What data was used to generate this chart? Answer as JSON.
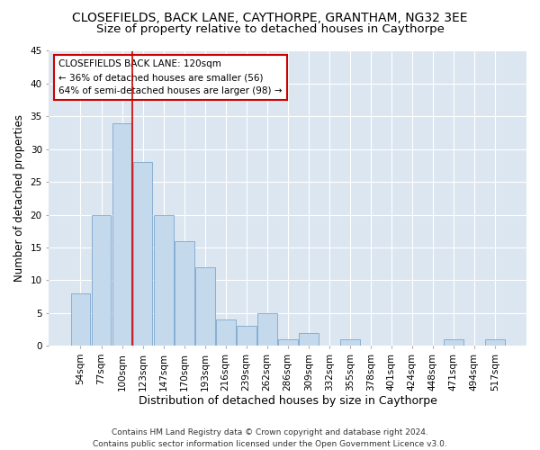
{
  "title": "CLOSEFIELDS, BACK LANE, CAYTHORPE, GRANTHAM, NG32 3EE",
  "subtitle": "Size of property relative to detached houses in Caythorpe",
  "xlabel": "Distribution of detached houses by size in Caythorpe",
  "ylabel": "Number of detached properties",
  "bar_color": "#c5d9ed",
  "bar_edge_color": "#6a9cc9",
  "background_color": "#dce6f1",
  "grid_color": "#ffffff",
  "categories": [
    "54sqm",
    "77sqm",
    "100sqm",
    "123sqm",
    "147sqm",
    "170sqm",
    "193sqm",
    "216sqm",
    "239sqm",
    "262sqm",
    "286sqm",
    "309sqm",
    "332sqm",
    "355sqm",
    "378sqm",
    "401sqm",
    "424sqm",
    "448sqm",
    "471sqm",
    "494sqm",
    "517sqm"
  ],
  "values": [
    8,
    20,
    34,
    28,
    20,
    16,
    12,
    4,
    3,
    5,
    1,
    2,
    0,
    1,
    0,
    0,
    0,
    0,
    1,
    0,
    1
  ],
  "ylim": [
    0,
    45
  ],
  "yticks": [
    0,
    5,
    10,
    15,
    20,
    25,
    30,
    35,
    40,
    45
  ],
  "property_line_x": 2.5,
  "annotation_line1": "CLOSEFIELDS BACK LANE: 120sqm",
  "annotation_line2": "← 36% of detached houses are smaller (56)",
  "annotation_line3": "64% of semi-detached houses are larger (98) →",
  "annotation_box_color": "#ffffff",
  "annotation_box_edge": "#cc0000",
  "property_line_color": "#cc0000",
  "footer_line1": "Contains HM Land Registry data © Crown copyright and database right 2024.",
  "footer_line2": "Contains public sector information licensed under the Open Government Licence v3.0.",
  "title_fontsize": 10,
  "subtitle_fontsize": 9.5,
  "xlabel_fontsize": 9,
  "ylabel_fontsize": 8.5,
  "tick_fontsize": 7.5,
  "annotation_fontsize": 7.5,
  "footer_fontsize": 6.5
}
